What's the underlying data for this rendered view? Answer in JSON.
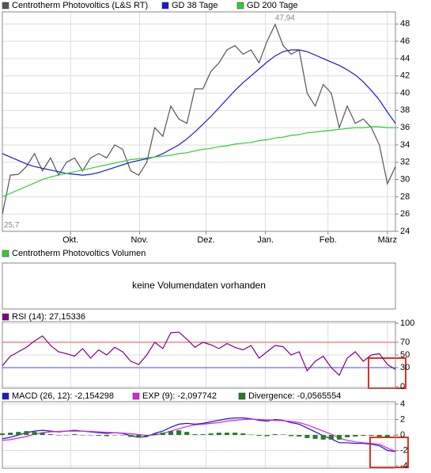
{
  "chart_data": [
    {
      "type": "line",
      "series": [
        {
          "name": "Centrotherm Photovoltics (L&S RT)",
          "color": "#555555",
          "values": [
            26,
            30.5,
            30.6,
            31.5,
            33,
            31,
            32.5,
            30.5,
            32,
            32.5,
            31,
            32.5,
            33,
            32.5,
            34,
            33.5,
            31,
            30.5,
            32,
            36,
            35,
            38.5,
            37,
            36.5,
            40.5,
            40.5,
            42.5,
            43.5,
            45,
            45.5,
            44.5,
            45,
            43.5,
            46,
            47.94,
            45.5,
            44.5,
            45,
            40,
            38.5,
            41,
            40,
            36,
            38.5,
            36.5,
            37,
            36,
            34,
            29.5,
            31.5
          ]
        },
        {
          "name": "GD 38 Tage",
          "color": "#1a1acc",
          "values": [
            33,
            32.6,
            32.2,
            31.8,
            31.5,
            31.3,
            31.1,
            30.9,
            30.7,
            30.6,
            30.5,
            30.6,
            30.8,
            31.1,
            31.4,
            31.7,
            32,
            32.2,
            32.4,
            32.6,
            33,
            33.5,
            34,
            34.7,
            35.5,
            36.4,
            37.3,
            38.3,
            39.3,
            40.3,
            41.2,
            42,
            42.8,
            43.6,
            44.3,
            44.8,
            45,
            45,
            44.8,
            44.4,
            44,
            43.6,
            43.2,
            42.7,
            42.1,
            41.3,
            40.3,
            39.2,
            37.8,
            36.5
          ]
        },
        {
          "name": "GD 200 Tage",
          "color": "#33cc33",
          "values": [
            28,
            28.4,
            28.8,
            29.2,
            29.6,
            30,
            30.3,
            30.5,
            30.7,
            30.9,
            31.1,
            31.3,
            31.5,
            31.7,
            31.9,
            32.1,
            32.3,
            32.4,
            32.5,
            32.6,
            32.7,
            32.8,
            33,
            33.1,
            33.3,
            33.5,
            33.6,
            33.8,
            33.9,
            34.1,
            34.2,
            34.3,
            34.5,
            34.6,
            34.8,
            34.9,
            35.1,
            35.2,
            35.4,
            35.5,
            35.6,
            35.7,
            35.8,
            35.9,
            36,
            36,
            36.1,
            36.1,
            36,
            36
          ]
        }
      ],
      "annotations": [
        {
          "text": "47,94",
          "x": 34,
          "y": 47.94
        },
        {
          "text": "25,7",
          "x": 0,
          "y": 25.7
        }
      ],
      "xlim": [
        0,
        49
      ],
      "xticks": [
        {
          "value": 8.5,
          "label": "Okt."
        },
        {
          "value": 17.1,
          "label": "Nov."
        },
        {
          "value": 25.4,
          "label": "Dez."
        },
        {
          "value": 32.8,
          "label": "Jan."
        },
        {
          "value": 40.6,
          "label": "Feb."
        },
        {
          "value": 48,
          "label": "März"
        }
      ],
      "ylim": [
        24,
        49.4
      ],
      "yticks": [
        24,
        26,
        28,
        30,
        32,
        34,
        36,
        38,
        40,
        42,
        44,
        46,
        48
      ],
      "grid": true
    },
    {
      "type": "bar",
      "series": [
        {
          "name": "Centrotherm Photovoltics Volumen",
          "color": "#33cc33"
        }
      ],
      "message": "keine Volumendaten vorhanden"
    },
    {
      "type": "line",
      "series": [
        {
          "name": "RSI (14): 27,15336",
          "color": "#800080",
          "values": [
            33,
            48,
            55,
            62,
            72,
            80,
            65,
            55,
            52,
            48,
            60,
            45,
            58,
            50,
            62,
            55,
            40,
            35,
            50,
            70,
            60,
            85,
            86,
            75,
            62,
            70,
            66,
            60,
            68,
            62,
            58,
            65,
            45,
            55,
            65,
            63,
            50,
            55,
            25,
            40,
            48,
            30,
            18,
            45,
            55,
            40,
            50,
            52,
            35,
            27.15
          ]
        }
      ],
      "hlines": [
        {
          "value": 70,
          "color": "#ff4444"
        },
        {
          "value": 30,
          "color": "#4444ff"
        }
      ],
      "xlim": [
        0,
        49
      ],
      "ylim": [
        0,
        100
      ],
      "yticks": [
        0,
        30,
        50,
        70,
        100
      ],
      "grid": true
    },
    {
      "type": "macd",
      "series": [
        {
          "name": "MACD (26, 12): -2,154298",
          "color": "#1a1acc",
          "values": [
            -0.5,
            -0.3,
            0,
            0.3,
            0.5,
            0.6,
            0.5,
            0.4,
            0.5,
            0.6,
            0.5,
            0.4,
            0.3,
            0.2,
            0.3,
            0.2,
            -0.1,
            -0.3,
            -0.2,
            0.2,
            0.5,
            1.0,
            1.4,
            1.5,
            1.4,
            1.5,
            1.7,
            1.9,
            2.1,
            2.2,
            2.2,
            2.1,
            1.9,
            1.8,
            2.0,
            1.9,
            1.6,
            1.4,
            0.9,
            0.4,
            -0.1,
            -0.5,
            -1.0,
            -1.0,
            -1.1,
            -1.1,
            -1.2,
            -1.4,
            -2.0,
            -2.154298
          ]
        },
        {
          "name": "EXP (9): -2,097742",
          "color": "#dd22dd",
          "values": [
            -0.7,
            -0.6,
            -0.4,
            -0.2,
            0.1,
            0.3,
            0.4,
            0.45,
            0.5,
            0.5,
            0.5,
            0.45,
            0.4,
            0.35,
            0.3,
            0.25,
            0.15,
            0.05,
            -0.05,
            0,
            0.2,
            0.5,
            0.8,
            1.1,
            1.3,
            1.4,
            1.5,
            1.6,
            1.8,
            1.9,
            2.0,
            2.05,
            2.0,
            1.95,
            1.9,
            1.85,
            1.75,
            1.6,
            1.3,
            0.9,
            0.5,
            0.1,
            -0.4,
            -0.7,
            -0.9,
            -1.0,
            -1.1,
            -1.2,
            -1.7,
            -2.097742
          ]
        },
        {
          "name": "Divergence: -0,0565554",
          "color": "#2a7a2a",
          "kind": "bar",
          "values": [
            0.2,
            0.3,
            0.4,
            0.5,
            0.4,
            0.3,
            0.1,
            -0.05,
            0,
            0.1,
            0,
            -0.05,
            -0.1,
            -0.15,
            0,
            -0.05,
            -0.25,
            -0.35,
            -0.15,
            0.2,
            0.3,
            0.5,
            0.6,
            0.4,
            0.1,
            0.1,
            0.2,
            0.3,
            0.3,
            0.3,
            0.2,
            0.05,
            -0.1,
            -0.15,
            0.1,
            0.05,
            -0.15,
            -0.2,
            -0.4,
            -0.5,
            -0.6,
            -0.6,
            -0.6,
            -0.3,
            -0.2,
            -0.1,
            -0.1,
            -0.2,
            -0.3,
            -0.0565554
          ]
        }
      ],
      "xlim": [
        0,
        49
      ],
      "ylim": [
        -4,
        4
      ],
      "yticks": [
        -4,
        -2,
        0,
        2,
        4
      ],
      "grid": true
    }
  ]
}
